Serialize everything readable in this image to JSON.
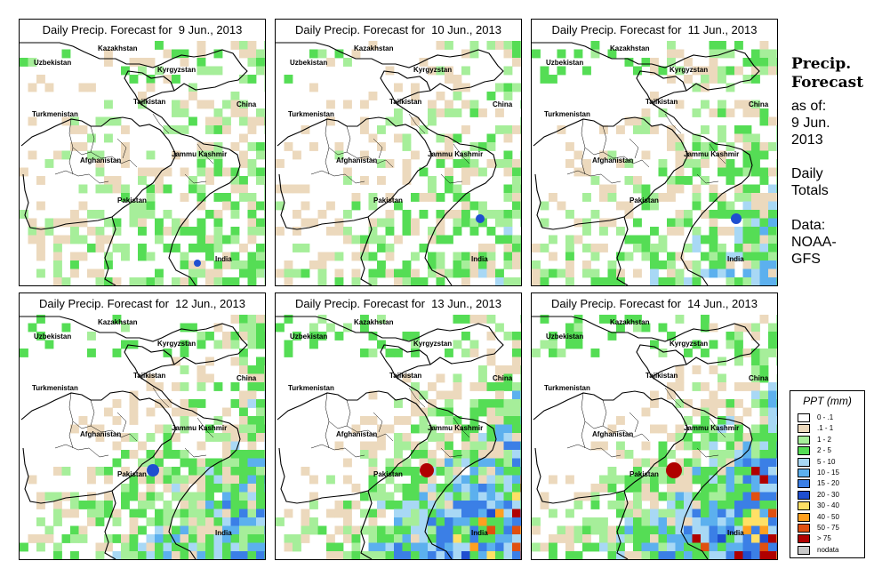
{
  "panels": [
    {
      "title": "Daily Precip. Forecast for  9 Jun., 2013"
    },
    {
      "title": "Daily Precip. Forecast for  10 Jun., 2013"
    },
    {
      "title": "Daily Precip. Forecast for  11 Jun., 2013"
    },
    {
      "title": "Daily Precip. Forecast for  12 Jun., 2013"
    },
    {
      "title": "Daily Precip. Forecast for  13 Jun., 2013"
    },
    {
      "title": "Daily Precip. Forecast for  14 Jun., 2013"
    }
  ],
  "map_labels": {
    "kazakhstan": "Kazakhstan",
    "uzbekistan": "Uzbekistan",
    "kyrgyzstan": "Kyrgyzstan",
    "tajikistan": "Tajikistan",
    "turkmenistan": "Turkmenistan",
    "china": "China",
    "afghanistan": "Afghanistan",
    "jammu_kashmir": "Jammu Kashmir",
    "pakistan": "Pakistan",
    "india": "India"
  },
  "sidebar": {
    "title_line1": "Precip.",
    "title_line2": "Forecast",
    "asof_line1": "as of:",
    "asof_line2": "9 Jun.",
    "asof_line3": "2013",
    "totals_line1": "Daily",
    "totals_line2": "Totals",
    "data_line1": "Data:",
    "data_line2": "NOAA-",
    "data_line3": "GFS"
  },
  "legend": {
    "title": "PPT (mm)",
    "items": [
      {
        "label": "0 - .1",
        "color": "#ffffff"
      },
      {
        "label": ".1 - 1",
        "color": "#ecd9bd"
      },
      {
        "label": "1 - 2",
        "color": "#a6ee9a"
      },
      {
        "label": "2 - 5",
        "color": "#55dd55"
      },
      {
        "label": "5 - 10",
        "color": "#a8d8f5"
      },
      {
        "label": "10 - 15",
        "color": "#5cb0ee"
      },
      {
        "label": "15 - 20",
        "color": "#3b7fe6"
      },
      {
        "label": "20 - 30",
        "color": "#1f4fd0"
      },
      {
        "label": "30 - 40",
        "color": "#ffe066"
      },
      {
        "label": "40 - 50",
        "color": "#ffa020"
      },
      {
        "label": "50 - 75",
        "color": "#e05010"
      },
      {
        "label": "> 75",
        "color": "#b00000"
      },
      {
        "label": "nodata",
        "color": "#c8c8c8"
      }
    ]
  }
}
